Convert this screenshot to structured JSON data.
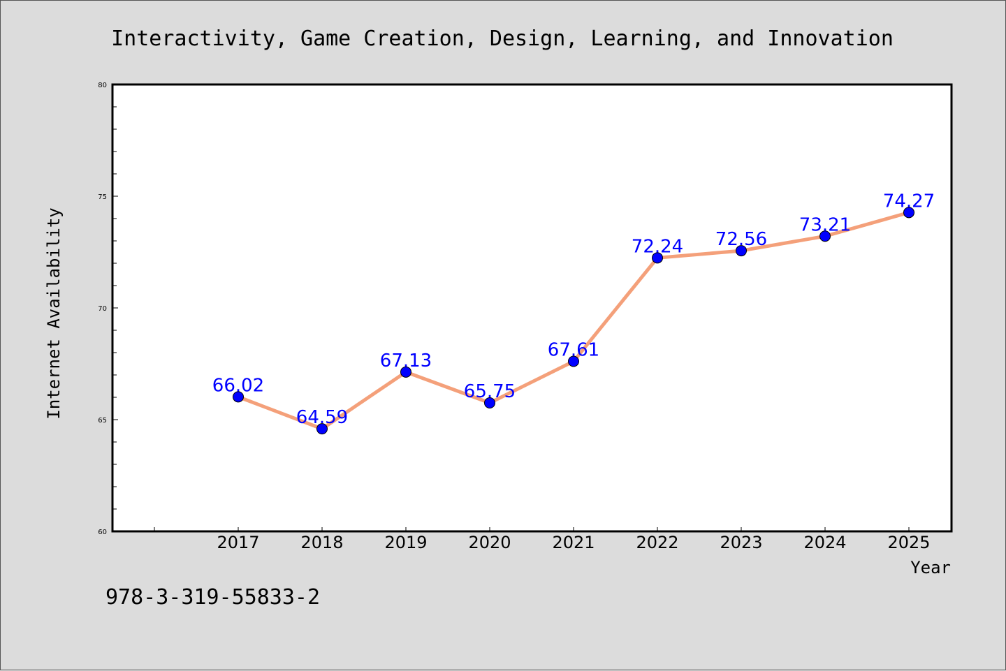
{
  "chart_data": {
    "type": "line",
    "title": "Interactivity, Game Creation, Design, Learning, and Innovation",
    "xlabel": "Year",
    "ylabel": "Internet Availability",
    "categories": [
      "2017",
      "2018",
      "2019",
      "2020",
      "2021",
      "2022",
      "2023",
      "2024",
      "2025"
    ],
    "values": [
      66.02,
      64.59,
      67.13,
      65.75,
      67.61,
      72.24,
      72.56,
      73.21,
      74.27
    ],
    "data_labels": [
      "66.02",
      "64.59",
      "67.13",
      "65.75",
      "67.61",
      "72.24",
      "72.56",
      "73.21",
      "74.27"
    ],
    "ylim": [
      60,
      80
    ],
    "yticks": [
      60,
      65,
      70,
      75,
      80
    ],
    "ytick_labels": [
      "60",
      "65",
      "70",
      "75",
      "80"
    ],
    "grid": false,
    "legend": "none",
    "colors": {
      "line": "#f4a07a",
      "marker": "#0000ff",
      "label": "#0000ff",
      "background": "#dcdcdc",
      "plot_background": "#ffffff"
    }
  },
  "footer_text": "978-3-319-55833-2"
}
